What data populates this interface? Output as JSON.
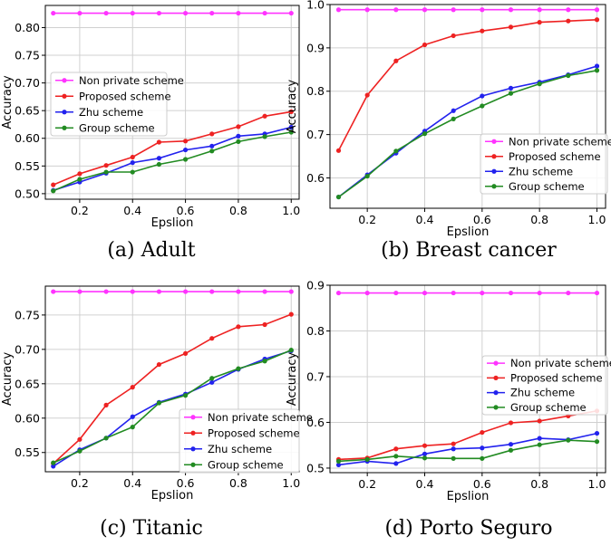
{
  "chart_data": [
    {
      "type": "line",
      "caption": "(a) Adult",
      "xlabel": "Epslion",
      "ylabel": "Accuracy",
      "xlim": [
        0.07,
        1.03
      ],
      "ylim": [
        0.49,
        0.84
      ],
      "xticks": [
        "0.2",
        "0.4",
        "0.6",
        "0.8",
        "1.0"
      ],
      "yticks": [
        "0.50",
        "0.55",
        "0.60",
        "0.65",
        "0.70",
        "0.75",
        "0.80"
      ],
      "grid": true,
      "legend_position": "center-left",
      "x": [
        0.1,
        0.2,
        0.3,
        0.4,
        0.5,
        0.6,
        0.7,
        0.8,
        0.9,
        1.0
      ],
      "series": [
        {
          "name": "Non private scheme",
          "color": "#ff33ff",
          "values": [
            0.826,
            0.826,
            0.826,
            0.826,
            0.826,
            0.826,
            0.826,
            0.826,
            0.826,
            0.826
          ]
        },
        {
          "name": "Proposed scheme",
          "color": "#ee2222",
          "values": [
            0.516,
            0.536,
            0.551,
            0.566,
            0.593,
            0.595,
            0.608,
            0.621,
            0.64,
            0.648
          ]
        },
        {
          "name": "Zhu scheme",
          "color": "#2222ee",
          "values": [
            0.506,
            0.521,
            0.537,
            0.556,
            0.564,
            0.579,
            0.586,
            0.604,
            0.608,
            0.62
          ]
        },
        {
          "name": "Group scheme",
          "color": "#228b22",
          "values": [
            0.505,
            0.526,
            0.539,
            0.539,
            0.553,
            0.562,
            0.577,
            0.594,
            0.603,
            0.611
          ]
        }
      ]
    },
    {
      "type": "line",
      "caption": "(b) Breast cancer",
      "xlabel": "Epslion",
      "ylabel": "Accuracy",
      "xlim": [
        0.07,
        1.03
      ],
      "ylim": [
        0.53,
        1.0
      ],
      "xticks": [
        "0.2",
        "0.4",
        "0.6",
        "0.8",
        "1.0"
      ],
      "yticks": [
        "0.6",
        "0.7",
        "0.8",
        "0.9",
        "1.0"
      ],
      "grid": true,
      "legend_position": "lower-right",
      "x": [
        0.1,
        0.2,
        0.3,
        0.4,
        0.5,
        0.6,
        0.7,
        0.8,
        0.9,
        1.0
      ],
      "series": [
        {
          "name": "Non private scheme",
          "color": "#ff33ff",
          "values": [
            0.988,
            0.988,
            0.988,
            0.988,
            0.988,
            0.988,
            0.988,
            0.988,
            0.988,
            0.988
          ]
        },
        {
          "name": "Proposed scheme",
          "color": "#ee2222",
          "values": [
            0.663,
            0.791,
            0.87,
            0.907,
            0.928,
            0.939,
            0.948,
            0.959,
            0.962,
            0.965
          ]
        },
        {
          "name": "Zhu scheme",
          "color": "#2222ee",
          "values": [
            0.556,
            0.607,
            0.657,
            0.708,
            0.755,
            0.789,
            0.807,
            0.821,
            0.838,
            0.858
          ]
        },
        {
          "name": "Group scheme",
          "color": "#228b22",
          "values": [
            0.556,
            0.604,
            0.662,
            0.702,
            0.736,
            0.766,
            0.795,
            0.817,
            0.836,
            0.848
          ]
        }
      ]
    },
    {
      "type": "line",
      "caption": "(c) Titanic",
      "xlabel": "Epslion",
      "ylabel": "Accuracy",
      "xlim": [
        0.07,
        1.03
      ],
      "ylim": [
        0.522,
        0.792
      ],
      "xticks": [
        "0.2",
        "0.4",
        "0.6",
        "0.8",
        "1.0"
      ],
      "yticks": [
        "0.55",
        "0.60",
        "0.65",
        "0.70",
        "0.75"
      ],
      "grid": true,
      "legend_position": "lower-right",
      "x": [
        0.1,
        0.2,
        0.3,
        0.4,
        0.5,
        0.6,
        0.7,
        0.8,
        0.9,
        1.0
      ],
      "series": [
        {
          "name": "Non private scheme",
          "color": "#ff33ff",
          "values": [
            0.784,
            0.784,
            0.784,
            0.784,
            0.784,
            0.784,
            0.784,
            0.784,
            0.784,
            0.784
          ]
        },
        {
          "name": "Proposed scheme",
          "color": "#ee2222",
          "values": [
            0.534,
            0.569,
            0.619,
            0.645,
            0.678,
            0.694,
            0.716,
            0.733,
            0.736,
            0.751
          ]
        },
        {
          "name": "Zhu scheme",
          "color": "#2222ee",
          "values": [
            0.53,
            0.554,
            0.571,
            0.602,
            0.623,
            0.635,
            0.652,
            0.671,
            0.686,
            0.698
          ]
        },
        {
          "name": "Group scheme",
          "color": "#228b22",
          "values": [
            0.535,
            0.552,
            0.571,
            0.587,
            0.622,
            0.633,
            0.658,
            0.672,
            0.683,
            0.699
          ]
        }
      ]
    },
    {
      "type": "line",
      "caption": "(d) Porto Seguro",
      "xlabel": "Epslion",
      "ylabel": "Accuracy",
      "xlim": [
        0.07,
        1.03
      ],
      "ylim": [
        0.49,
        0.9
      ],
      "xticks": [
        "0.2",
        "0.4",
        "0.6",
        "0.8",
        "1.0"
      ],
      "yticks": [
        "0.5",
        "0.6",
        "0.7",
        "0.8",
        "0.9"
      ],
      "grid": true,
      "legend_position": "center-right",
      "x": [
        0.1,
        0.2,
        0.3,
        0.4,
        0.5,
        0.6,
        0.7,
        0.8,
        0.9,
        1.0
      ],
      "series": [
        {
          "name": "Non private scheme",
          "color": "#ff33ff",
          "values": [
            0.883,
            0.883,
            0.883,
            0.883,
            0.883,
            0.883,
            0.883,
            0.883,
            0.883,
            0.883
          ]
        },
        {
          "name": "Proposed scheme",
          "color": "#ee2222",
          "values": [
            0.519,
            0.522,
            0.542,
            0.549,
            0.553,
            0.578,
            0.599,
            0.603,
            0.614,
            0.625
          ]
        },
        {
          "name": "Zhu scheme",
          "color": "#2222ee",
          "values": [
            0.507,
            0.515,
            0.51,
            0.531,
            0.542,
            0.544,
            0.552,
            0.565,
            0.562,
            0.576
          ]
        },
        {
          "name": "Group scheme",
          "color": "#228b22",
          "values": [
            0.515,
            0.519,
            0.526,
            0.522,
            0.521,
            0.521,
            0.539,
            0.551,
            0.561,
            0.558
          ]
        }
      ]
    }
  ]
}
